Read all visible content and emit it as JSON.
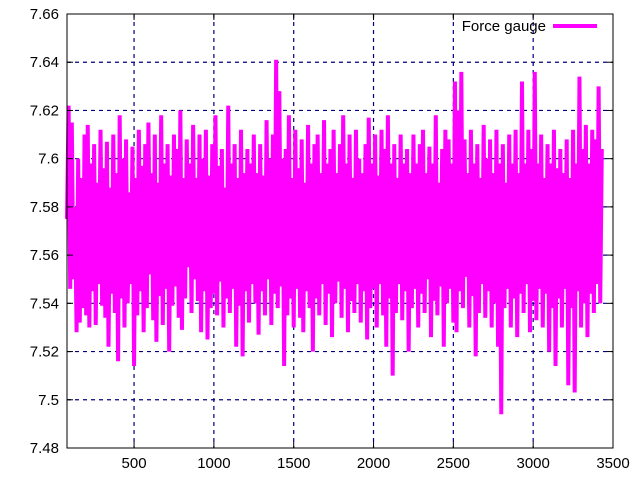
{
  "chart_data": {
    "type": "line",
    "title": "",
    "xlabel": "",
    "ylabel": "",
    "xlim": [
      80,
      3500
    ],
    "ylim": [
      7.48,
      7.66
    ],
    "x_ticks": [
      500,
      1000,
      1500,
      2000,
      2500,
      3000,
      3500
    ],
    "x_tick_labels": [
      "500",
      "1000",
      "1500",
      "2000",
      "2500",
      "3000",
      "3500"
    ],
    "y_ticks": [
      7.48,
      7.5,
      7.52,
      7.54,
      7.56,
      7.58,
      7.6,
      7.62,
      7.64,
      7.66
    ],
    "y_tick_labels": [
      "7.48",
      "7.5",
      "7.52",
      "7.54",
      "7.56",
      "7.58",
      "7.6",
      "7.62",
      "7.64",
      "7.66"
    ],
    "grid": true,
    "legend": {
      "position": "top-right",
      "entries": [
        "Force gauge"
      ]
    },
    "series": [
      {
        "name": "Force gauge",
        "color": "#ff00ff",
        "x_start": 80,
        "x_step": 10,
        "values": [
          7.575,
          7.622,
          7.546,
          7.615,
          7.55,
          7.58,
          7.528,
          7.6,
          7.532,
          7.592,
          7.538,
          7.61,
          7.535,
          7.614,
          7.53,
          7.598,
          7.545,
          7.606,
          7.531,
          7.59,
          7.548,
          7.612,
          7.539,
          7.596,
          7.534,
          7.607,
          7.522,
          7.588,
          7.544,
          7.61,
          7.536,
          7.594,
          7.516,
          7.618,
          7.542,
          7.6,
          7.53,
          7.608,
          7.54,
          7.586,
          7.548,
          7.605,
          7.514,
          7.592,
          7.535,
          7.612,
          7.545,
          7.597,
          7.528,
          7.606,
          7.538,
          7.615,
          7.552,
          7.594,
          7.533,
          7.61,
          7.524,
          7.59,
          7.543,
          7.618,
          7.531,
          7.598,
          7.546,
          7.606,
          7.52,
          7.593,
          7.539,
          7.61,
          7.547,
          7.604,
          7.534,
          7.62,
          7.529,
          7.592,
          7.542,
          7.608,
          7.555,
          7.598,
          7.536,
          7.614,
          7.55,
          7.592,
          7.541,
          7.61,
          7.528,
          7.6,
          7.545,
          7.612,
          7.525,
          7.593,
          7.538,
          7.606,
          7.544,
          7.618,
          7.535,
          7.597,
          7.549,
          7.604,
          7.53,
          7.588,
          7.542,
          7.622,
          7.536,
          7.598,
          7.546,
          7.606,
          7.522,
          7.592,
          7.539,
          7.612,
          7.518,
          7.594,
          7.545,
          7.604,
          7.532,
          7.598,
          7.548,
          7.61,
          7.54,
          7.594,
          7.527,
          7.606,
          7.545,
          7.593,
          7.535,
          7.616,
          7.55,
          7.6,
          7.531,
          7.61,
          7.544,
          7.641,
          7.538,
          7.628,
          7.547,
          7.6,
          7.514,
          7.604,
          7.535,
          7.618,
          7.542,
          7.592,
          7.53,
          7.612,
          7.546,
          7.596,
          7.534,
          7.608,
          7.528,
          7.59,
          7.545,
          7.614,
          7.538,
          7.598,
          7.52,
          7.606,
          7.542,
          7.61,
          7.535,
          7.594,
          7.548,
          7.616,
          7.531,
          7.598,
          7.544,
          7.604,
          7.526,
          7.612,
          7.54,
          7.594,
          7.549,
          7.606,
          7.534,
          7.618,
          7.546,
          7.598,
          7.528,
          7.61,
          7.541,
          7.592,
          7.536,
          7.612,
          7.548,
          7.6,
          7.532,
          7.594,
          7.545,
          7.606,
          7.525,
          7.617,
          7.538,
          7.598,
          7.546,
          7.61,
          7.53,
          7.593,
          7.548,
          7.612,
          7.535,
          7.604,
          7.522,
          7.618,
          7.542,
          7.598,
          7.51,
          7.606,
          7.536,
          7.592,
          7.548,
          7.61,
          7.533,
          7.598,
          7.545,
          7.604,
          7.52,
          7.594,
          7.538,
          7.61,
          7.546,
          7.598,
          7.53,
          7.606,
          7.544,
          7.612,
          7.536,
          7.594,
          7.55,
          7.605,
          7.526,
          7.598,
          7.541,
          7.618,
          7.535,
          7.59,
          7.547,
          7.604,
          7.522,
          7.612,
          7.54,
          7.608,
          7.546,
          7.598,
          7.532,
          7.632,
          7.528,
          7.62,
          7.545,
          7.636,
          7.538,
          7.608,
          7.551,
          7.594,
          7.53,
          7.612,
          7.543,
          7.598,
          7.518,
          7.606,
          7.536,
          7.592,
          7.548,
          7.614,
          7.534,
          7.6,
          7.545,
          7.608,
          7.53,
          7.594,
          7.54,
          7.612,
          7.522,
          7.598,
          7.494,
          7.606,
          7.538,
          7.59,
          7.546,
          7.61,
          7.53,
          7.598,
          7.542,
          7.612,
          7.526,
          7.594,
          7.544,
          7.632,
          7.536,
          7.598,
          7.548,
          7.612,
          7.528,
          7.604,
          7.541,
          7.636,
          7.533,
          7.598,
          7.546,
          7.61,
          7.53,
          7.592,
          7.544,
          7.606,
          7.52,
          7.598,
          7.538,
          7.612,
          7.514,
          7.596,
          7.542,
          7.604,
          7.53,
          7.594,
          7.546,
          7.608,
          7.506,
          7.592,
          7.538,
          7.612,
          7.503,
          7.598,
          7.545,
          7.634,
          7.53,
          7.604,
          7.54,
          7.614,
          7.526,
          7.598,
          7.544,
          7.612,
          7.536,
          7.608,
          7.548,
          7.63,
          7.54,
          7.604
        ]
      }
    ]
  }
}
